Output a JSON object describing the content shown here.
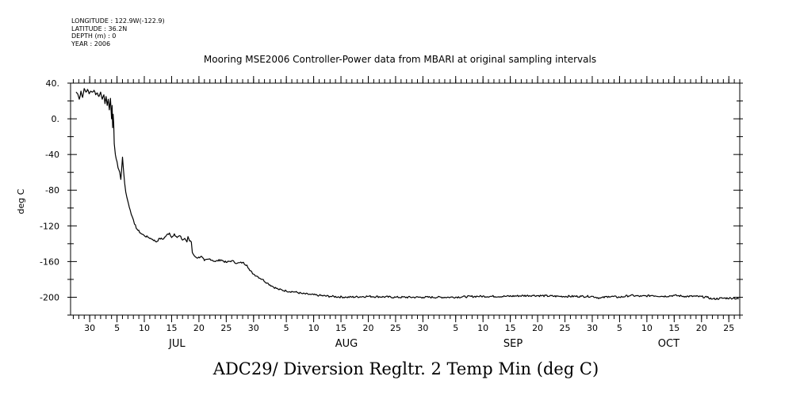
{
  "meta": {
    "longitude": "LONGITUDE : 122.9W(-122.9)",
    "latitude": "LATITUDE : 36.2N",
    "depth": "DEPTH (m) : 0",
    "year": "YEAR : 2006"
  },
  "chart_data": {
    "type": "line",
    "title": "Mooring MSE2006 Controller-Power data from MBARI at original sampling intervals",
    "caption": "ADC29/ Diversion Regltr. 2 Temp Min (deg C)",
    "xlabel": "",
    "ylabel": "deg C",
    "ylim": [
      -220,
      40
    ],
    "yticks": [
      40,
      0,
      -40,
      -80,
      -120,
      -160,
      -200
    ],
    "ytick_labels": [
      "40.",
      "0.",
      "-40",
      "-80",
      "-120",
      "-160",
      "-200"
    ],
    "xlim_days": [
      -4.5,
      118
    ],
    "x_unit": "days since Jul 1 2006",
    "day_ticks": [
      {
        "day": -1,
        "label": "30"
      },
      {
        "day": 4,
        "label": "5"
      },
      {
        "day": 9,
        "label": "10"
      },
      {
        "day": 14,
        "label": "15"
      },
      {
        "day": 19,
        "label": "20"
      },
      {
        "day": 24,
        "label": "25"
      },
      {
        "day": 29,
        "label": "30"
      },
      {
        "day": 35,
        "label": "5"
      },
      {
        "day": 40,
        "label": "10"
      },
      {
        "day": 45,
        "label": "15"
      },
      {
        "day": 50,
        "label": "20"
      },
      {
        "day": 55,
        "label": "25"
      },
      {
        "day": 60,
        "label": "30"
      },
      {
        "day": 66,
        "label": "5"
      },
      {
        "day": 71,
        "label": "10"
      },
      {
        "day": 76,
        "label": "15"
      },
      {
        "day": 81,
        "label": "20"
      },
      {
        "day": 86,
        "label": "25"
      },
      {
        "day": 91,
        "label": "30"
      },
      {
        "day": 96,
        "label": "5"
      },
      {
        "day": 101,
        "label": "10"
      },
      {
        "day": 106,
        "label": "15"
      },
      {
        "day": 111,
        "label": "20"
      },
      {
        "day": 116,
        "label": "25"
      }
    ],
    "months": [
      {
        "day": 15,
        "label": "JUL"
      },
      {
        "day": 46,
        "label": "AUG"
      },
      {
        "day": 76.5,
        "label": "SEP"
      },
      {
        "day": 105,
        "label": "OCT"
      }
    ],
    "series": [
      {
        "name": "ADC29 Diversion Regltr. 2 Temp Min",
        "points": [
          [
            -3.5,
            30
          ],
          [
            -3.2,
            28
          ],
          [
            -2.9,
            22
          ],
          [
            -2.6,
            31
          ],
          [
            -2.3,
            24
          ],
          [
            -2.0,
            34
          ],
          [
            -1.7,
            30
          ],
          [
            -1.4,
            33
          ],
          [
            -1.1,
            28
          ],
          [
            -0.8,
            31
          ],
          [
            -0.5,
            30
          ],
          [
            -0.2,
            32
          ],
          [
            0.1,
            27
          ],
          [
            0.4,
            29
          ],
          [
            0.7,
            25
          ],
          [
            1.0,
            30
          ],
          [
            1.3,
            22
          ],
          [
            1.6,
            27
          ],
          [
            1.8,
            17
          ],
          [
            2.0,
            25
          ],
          [
            2.2,
            15
          ],
          [
            2.4,
            22
          ],
          [
            2.6,
            10
          ],
          [
            2.8,
            23
          ],
          [
            3.0,
            0
          ],
          [
            3.1,
            15
          ],
          [
            3.2,
            -10
          ],
          [
            3.3,
            5
          ],
          [
            3.4,
            -5
          ],
          [
            3.5,
            -28
          ],
          [
            3.7,
            -40
          ],
          [
            4.0,
            -48
          ],
          [
            4.2,
            -55
          ],
          [
            4.5,
            -60
          ],
          [
            4.7,
            -68
          ],
          [
            4.9,
            -52
          ],
          [
            5.0,
            -43
          ],
          [
            5.2,
            -58
          ],
          [
            5.4,
            -72
          ],
          [
            5.6,
            -82
          ],
          [
            5.8,
            -88
          ],
          [
            6.1,
            -95
          ],
          [
            6.4,
            -102
          ],
          [
            6.8,
            -110
          ],
          [
            7.2,
            -118
          ],
          [
            7.7,
            -124
          ],
          [
            8.3,
            -128
          ],
          [
            9.0,
            -131
          ],
          [
            9.8,
            -133
          ],
          [
            10.5,
            -135
          ],
          [
            11.2,
            -138
          ],
          [
            11.8,
            -134
          ],
          [
            12.4,
            -135
          ],
          [
            13.0,
            -131
          ],
          [
            13.6,
            -128
          ],
          [
            14.0,
            -133
          ],
          [
            14.5,
            -129
          ],
          [
            15.0,
            -133
          ],
          [
            15.5,
            -131
          ],
          [
            16.0,
            -136
          ],
          [
            16.4,
            -134
          ],
          [
            16.8,
            -138
          ],
          [
            17.0,
            -132
          ],
          [
            17.3,
            -137
          ],
          [
            17.6,
            -138
          ],
          [
            17.8,
            -150
          ],
          [
            18.2,
            -154
          ],
          [
            18.8,
            -156
          ],
          [
            19.4,
            -154
          ],
          [
            20.0,
            -159
          ],
          [
            21.0,
            -157
          ],
          [
            22.0,
            -160
          ],
          [
            23.0,
            -158
          ],
          [
            24.0,
            -161
          ],
          [
            25.0,
            -159
          ],
          [
            26.0,
            -162
          ],
          [
            27.0,
            -161
          ],
          [
            27.8,
            -164
          ],
          [
            28.3,
            -170
          ],
          [
            29.0,
            -174
          ],
          [
            29.8,
            -177
          ],
          [
            30.6,
            -180
          ],
          [
            31.5,
            -184
          ],
          [
            32.5,
            -188
          ],
          [
            33.5,
            -191
          ],
          [
            35.0,
            -193
          ],
          [
            36.5,
            -194
          ],
          [
            38.0,
            -196
          ],
          [
            39.5,
            -197
          ],
          [
            41.0,
            -198
          ],
          [
            43.0,
            -199
          ],
          [
            46.0,
            -200
          ],
          [
            50.0,
            -199
          ],
          [
            55.0,
            -200
          ],
          [
            60.0,
            -200
          ],
          [
            65.0,
            -200
          ],
          [
            70.0,
            -199
          ],
          [
            75.0,
            -199
          ],
          [
            80.0,
            -198
          ],
          [
            85.0,
            -199
          ],
          [
            89.0,
            -199
          ],
          [
            91.0,
            -199
          ],
          [
            92.5,
            -201
          ],
          [
            94.0,
            -199
          ],
          [
            96.0,
            -200
          ],
          [
            98.0,
            -198
          ],
          [
            100.0,
            -199
          ],
          [
            102.0,
            -198
          ],
          [
            104.0,
            -199
          ],
          [
            106.0,
            -198
          ],
          [
            108.0,
            -199
          ],
          [
            110.0,
            -199
          ],
          [
            112.0,
            -200
          ],
          [
            113.0,
            -202
          ],
          [
            115.0,
            -201
          ],
          [
            117.0,
            -201
          ],
          [
            117.8,
            -202
          ]
        ]
      }
    ]
  }
}
